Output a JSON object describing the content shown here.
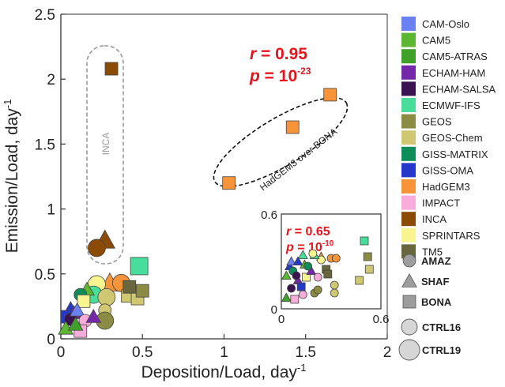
{
  "chart_data": [
    {
      "type": "scatter",
      "xlabel": "Deposition/Load, day",
      "xlabel_sup": "-1",
      "ylabel": "Emission/Load, day",
      "ylabel_sup": "-1",
      "xlim": [
        0,
        2
      ],
      "ylim": [
        0,
        2.5
      ],
      "x_ticks": [
        "0",
        "0.5",
        "1",
        "1.5",
        "2"
      ],
      "y_ticks": [
        "0",
        "0.5",
        "1",
        "1.5",
        "2",
        "2.5"
      ],
      "stats": {
        "r_label": "r",
        "r_value": " = 0.95",
        "p_label": "p",
        "p_value": " = 10",
        "p_exp": "-23"
      },
      "annotations": {
        "inca": "INCA",
        "hadgem": "HadGEM3 over BONA"
      },
      "points": [
        {
          "model": "INCA",
          "region": "BONA",
          "run": "CTRL16",
          "x": 0.31,
          "y": 2.08
        },
        {
          "model": "INCA",
          "region": "SHAF",
          "run": "CTRL19",
          "x": 0.27,
          "y": 0.76
        },
        {
          "model": "INCA",
          "region": "AMAZ",
          "run": "CTRL19",
          "x": 0.22,
          "y": 0.7
        },
        {
          "model": "HadGEM3",
          "region": "BONA",
          "run": "CTRL16",
          "x": 1.03,
          "y": 1.2
        },
        {
          "model": "HadGEM3",
          "region": "BONA",
          "run": "CTRL16",
          "x": 1.42,
          "y": 1.63
        },
        {
          "model": "HadGEM3",
          "region": "BONA",
          "run": "CTRL16",
          "x": 1.65,
          "y": 1.88
        },
        {
          "model": "ECMWF-IFS",
          "region": "BONA",
          "run": "CTRL19",
          "x": 0.48,
          "y": 0.56
        },
        {
          "model": "HadGEM3",
          "region": "SHAF",
          "run": "CTRL19",
          "x": 0.3,
          "y": 0.43
        },
        {
          "model": "HadGEM3",
          "region": "AMAZ",
          "run": "CTRL19",
          "x": 0.37,
          "y": 0.43
        },
        {
          "model": "SPRINTARS",
          "region": "AMAZ",
          "run": "CTRL19",
          "x": 0.22,
          "y": 0.42
        },
        {
          "model": "GEOS-Chem",
          "region": "BONA",
          "run": "CTRL16",
          "x": 0.41,
          "y": 0.33
        },
        {
          "model": "GEOS-Chem",
          "region": "BONA",
          "run": "CTRL16",
          "x": 0.47,
          "y": 0.31
        },
        {
          "model": "GEOS",
          "region": "BONA",
          "run": "CTRL16",
          "x": 0.5,
          "y": 0.37
        },
        {
          "model": "TM5",
          "region": "BONA",
          "run": "CTRL16",
          "x": 0.42,
          "y": 0.4
        },
        {
          "model": "ECMWF-IFS",
          "region": "AMAZ",
          "run": "CTRL19",
          "x": 0.2,
          "y": 0.34
        },
        {
          "model": "CAM5",
          "region": "SHAF",
          "run": "CTRL16",
          "x": 0.16,
          "y": 0.38
        },
        {
          "model": "GISS-MATRIX",
          "region": "AMAZ",
          "run": "CTRL16",
          "x": 0.12,
          "y": 0.34
        },
        {
          "model": "SPRINTARS",
          "region": "BONA",
          "run": "CTRL16",
          "x": 0.14,
          "y": 0.29
        },
        {
          "model": "GEOS-Chem",
          "region": "AMAZ",
          "run": "CTRL19",
          "x": 0.28,
          "y": 0.32
        },
        {
          "model": "GEOS-Chem",
          "region": "AMAZ",
          "run": "CTRL16",
          "x": 0.27,
          "y": 0.22
        },
        {
          "model": "GEOS",
          "region": "AMAZ",
          "run": "CTRL19",
          "x": 0.27,
          "y": 0.14
        },
        {
          "model": "GISS-OMA",
          "region": "SHAF",
          "run": "CTRL16",
          "x": 0.06,
          "y": 0.23
        },
        {
          "model": "ECHAM-HAM",
          "region": "SHAF",
          "run": "CTRL16",
          "x": 0.08,
          "y": 0.2
        },
        {
          "model": "GISS-OMA",
          "region": "BONA",
          "run": "CTRL16",
          "x": 0.04,
          "y": 0.17
        },
        {
          "model": "ECHAM-SALSA",
          "region": "AMAZ",
          "run": "CTRL16",
          "x": 0.06,
          "y": 0.15
        },
        {
          "model": "CAM-Oslo",
          "region": "SHAF",
          "run": "CTRL16",
          "x": 0.1,
          "y": 0.22
        },
        {
          "model": "IMPACT",
          "region": "AMAZ",
          "run": "CTRL16",
          "x": 0.15,
          "y": 0.14
        },
        {
          "model": "IMPACT",
          "region": "BONA",
          "run": "CTRL16",
          "x": 0.12,
          "y": 0.06
        },
        {
          "model": "CAM5",
          "region": "SHAF",
          "run": "CTRL16",
          "x": 0.03,
          "y": 0.08
        },
        {
          "model": "CAM5-ATRAS",
          "region": "SHAF",
          "run": "CTRL16",
          "x": 0.09,
          "y": 0.11
        },
        {
          "model": "ECHAM-HAM",
          "region": "SHAF",
          "run": "CTRL16",
          "x": 0.2,
          "y": 0.17
        }
      ]
    },
    {
      "type": "scatter",
      "title": "inset",
      "xlim": [
        0,
        0.6
      ],
      "ylim": [
        0,
        0.6
      ],
      "x_ticks": [
        "0",
        "0.6"
      ],
      "y_ticks": [
        "0",
        "0.6"
      ],
      "stats": {
        "r_label": "r",
        "r_value": " = 0.65",
        "p_label": "p",
        "p_value": " = 10",
        "p_exp": "-10"
      },
      "points": [
        {
          "model": "ECMWF-IFS",
          "region": "BONA",
          "x": 0.5,
          "y": 0.43
        },
        {
          "model": "HadGEM3",
          "region": "AMAZ",
          "x": 0.3,
          "y": 0.32
        },
        {
          "model": "HadGEM3",
          "region": "AMAZ",
          "x": 0.33,
          "y": 0.32
        },
        {
          "model": "HadGEM3",
          "region": "SHAF",
          "x": 0.24,
          "y": 0.33
        },
        {
          "model": "GEOS-Chem",
          "region": "BONA",
          "x": 0.53,
          "y": 0.25
        },
        {
          "model": "GEOS-Chem",
          "region": "BONA",
          "x": 0.47,
          "y": 0.18
        },
        {
          "model": "GEOS",
          "region": "BONA",
          "x": 0.52,
          "y": 0.33
        },
        {
          "model": "GEOS-Chem",
          "region": "AMAZ",
          "x": 0.32,
          "y": 0.15
        },
        {
          "model": "GEOS-Chem",
          "region": "AMAZ",
          "x": 0.32,
          "y": 0.1
        },
        {
          "model": "TM5",
          "region": "BONA",
          "x": 0.27,
          "y": 0.25
        },
        {
          "model": "SPRINTARS",
          "region": "AMAZ",
          "x": 0.24,
          "y": 0.31
        },
        {
          "model": "ECMWF-IFS",
          "region": "SHAF",
          "x": 0.2,
          "y": 0.34
        },
        {
          "model": "GISS-OMA",
          "region": "SHAF",
          "x": 0.05,
          "y": 0.27
        },
        {
          "model": "CAM5",
          "region": "SHAF",
          "x": 0.03,
          "y": 0.21
        },
        {
          "model": "GISS-MATRIX",
          "region": "AMAZ",
          "x": 0.07,
          "y": 0.24
        },
        {
          "model": "ECHAM-HAM",
          "region": "SHAF",
          "x": 0.1,
          "y": 0.18
        },
        {
          "model": "GISS-OMA",
          "region": "BONA",
          "x": 0.12,
          "y": 0.14
        },
        {
          "model": "ECHAM-SALSA",
          "region": "AMAZ",
          "x": 0.06,
          "y": 0.13
        },
        {
          "model": "IMPACT",
          "region": "AMAZ",
          "x": 0.13,
          "y": 0.09
        },
        {
          "model": "CAM5-ATRAS",
          "region": "SHAF",
          "x": 0.03,
          "y": 0.07
        },
        {
          "model": "IMPACT",
          "region": "BONA",
          "x": 0.08,
          "y": 0.06
        },
        {
          "model": "SPRINTARS",
          "region": "BONA",
          "x": 0.15,
          "y": 0.2
        },
        {
          "model": "GEOS",
          "region": "AMAZ",
          "x": 0.2,
          "y": 0.1
        },
        {
          "model": "ECHAM-HAM",
          "region": "SHAF",
          "x": 0.18,
          "y": 0.24
        },
        {
          "model": "TM5",
          "region": "BONA",
          "x": 0.28,
          "y": 0.22
        },
        {
          "model": "CAM-Oslo",
          "region": "SHAF",
          "x": 0.06,
          "y": 0.3
        },
        {
          "model": "GISS-OMA",
          "region": "SHAF",
          "x": 0.1,
          "y": 0.3
        },
        {
          "model": "CAM5",
          "region": "SHAF",
          "x": 0.14,
          "y": 0.28
        },
        {
          "model": "ECMWF-IFS",
          "region": "SHAF",
          "x": 0.13,
          "y": 0.34
        },
        {
          "model": "GEOS",
          "region": "AMAZ",
          "x": 0.22,
          "y": 0.12
        },
        {
          "model": "SPRINTARS",
          "region": "AMAZ",
          "x": 0.19,
          "y": 0.35
        },
        {
          "model": "GISS-MATRIX",
          "region": "AMAZ",
          "x": 0.16,
          "y": 0.27
        },
        {
          "model": "ECHAM-SALSA",
          "region": "AMAZ",
          "x": 0.09,
          "y": 0.21
        },
        {
          "model": "IMPACT",
          "region": "AMAZ",
          "x": 0.22,
          "y": 0.2
        }
      ]
    }
  ],
  "legend": {
    "models": [
      {
        "name": "CAM-Oslo",
        "color": "#6b80f2"
      },
      {
        "name": "CAM5",
        "color": "#5bb631"
      },
      {
        "name": "CAM5-ATRAS",
        "color": "#3fa12a"
      },
      {
        "name": "ECHAM-HAM",
        "color": "#7427a8"
      },
      {
        "name": "ECHAM-SALSA",
        "color": "#3a1350"
      },
      {
        "name": "ECMWF-IFS",
        "color": "#49dd9b"
      },
      {
        "name": "GEOS",
        "color": "#8c8b44"
      },
      {
        "name": "GEOS-Chem",
        "color": "#cfc771"
      },
      {
        "name": "GISS-MATRIX",
        "color": "#0d8d5a"
      },
      {
        "name": "GISS-OMA",
        "color": "#2538c9"
      },
      {
        "name": "HadGEM3",
        "color": "#f79339"
      },
      {
        "name": "IMPACT",
        "color": "#f8acd9"
      },
      {
        "name": "INCA",
        "color": "#8c4b05"
      },
      {
        "name": "SPRINTARS",
        "color": "#f8f590"
      },
      {
        "name": "TM5",
        "color": "#67663c"
      }
    ],
    "regions": [
      {
        "name": "AMAZ",
        "shape": "circle"
      },
      {
        "name": "SHAF",
        "shape": "triangle"
      },
      {
        "name": "BONA",
        "shape": "square"
      }
    ],
    "runs": [
      {
        "name": "CTRL16",
        "size": "small"
      },
      {
        "name": "CTRL19",
        "size": "large"
      }
    ]
  }
}
